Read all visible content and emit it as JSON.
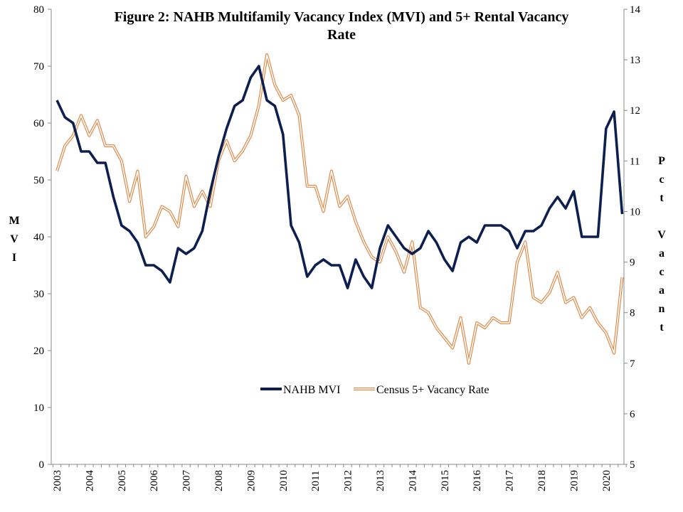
{
  "chart_data": {
    "type": "line",
    "title": "Figure 2: NAHB Multifamily Vacancy Index (MVI) and 5+ Rental Vacancy Rate",
    "title_lines": [
      "Figure 2: NAHB Multifamily  Vacancy  Index (MVI)  and  5+ Rental Vacancy",
      "Rate"
    ],
    "ylabel": "M V I",
    "ylabel_chars": [
      "M",
      "V",
      "I"
    ],
    "y2label": "Pct Vacant",
    "y2label_chars": [
      "P",
      "c",
      "t",
      "",
      "V",
      "a",
      "c",
      "a",
      "n",
      "t"
    ],
    "xlabel": "",
    "x_ticks": [
      "2003",
      "2004",
      "2005",
      "2006",
      "2007",
      "2008",
      "2009",
      "2010",
      "2011",
      "2012",
      "2013",
      "2014",
      "2015",
      "2016",
      "2017",
      "2018",
      "2019",
      "2020"
    ],
    "y_ticks": [
      "0",
      "10",
      "20",
      "30",
      "40",
      "50",
      "60",
      "70",
      "80"
    ],
    "y2_ticks": [
      "5",
      "6",
      "7",
      "8",
      "9",
      "10",
      "11",
      "12",
      "13",
      "14"
    ],
    "ylim": [
      0,
      80
    ],
    "y2lim": [
      5,
      14
    ],
    "grid": false,
    "legend_position": "lower-middle",
    "series": [
      {
        "name": "NAHB MVI",
        "axis": "left",
        "color": "#0d1f4f",
        "style": "solid-thick",
        "values": [
          64,
          61,
          60,
          55,
          55,
          53,
          53,
          47,
          42,
          41,
          39,
          35,
          35,
          34,
          32,
          38,
          37,
          38,
          41,
          48,
          54,
          59,
          63,
          64,
          68,
          70,
          64,
          63,
          58,
          42,
          39,
          33,
          35,
          36,
          35,
          35,
          31,
          36,
          33,
          31,
          38,
          42,
          40,
          38,
          37,
          38,
          41,
          39,
          36,
          34,
          39,
          40,
          39,
          42,
          42,
          42,
          41,
          38,
          41,
          41,
          42,
          45,
          47,
          45,
          48,
          40,
          40,
          40,
          59,
          62,
          44
        ]
      },
      {
        "name": "Census 5+ Vacancy Rate",
        "axis": "right",
        "color": "#e08a4a",
        "style": "double-line",
        "values": [
          10.8,
          11.3,
          11.5,
          11.9,
          11.5,
          11.8,
          11.3,
          11.3,
          11.0,
          10.2,
          10.8,
          9.5,
          9.7,
          10.1,
          10.0,
          9.7,
          10.7,
          10.1,
          10.4,
          10.1,
          11.0,
          11.4,
          11.0,
          11.2,
          11.5,
          12.1,
          13.1,
          12.5,
          12.2,
          12.3,
          11.9,
          10.5,
          10.5,
          10.0,
          10.8,
          10.1,
          10.3,
          9.8,
          9.4,
          9.1,
          9.0,
          9.5,
          9.2,
          8.8,
          9.4,
          8.1,
          8.0,
          7.7,
          7.5,
          7.3,
          7.9,
          7.0,
          7.8,
          7.7,
          7.9,
          7.8,
          7.8,
          9.0,
          9.4,
          8.3,
          8.2,
          8.4,
          8.8,
          8.2,
          8.3,
          7.9,
          8.1,
          7.8,
          7.6,
          7.2,
          8.7
        ]
      }
    ]
  },
  "legend": {
    "mvi_label": "NAHB MVI",
    "census_label": "Census 5+ Vacancy Rate"
  }
}
